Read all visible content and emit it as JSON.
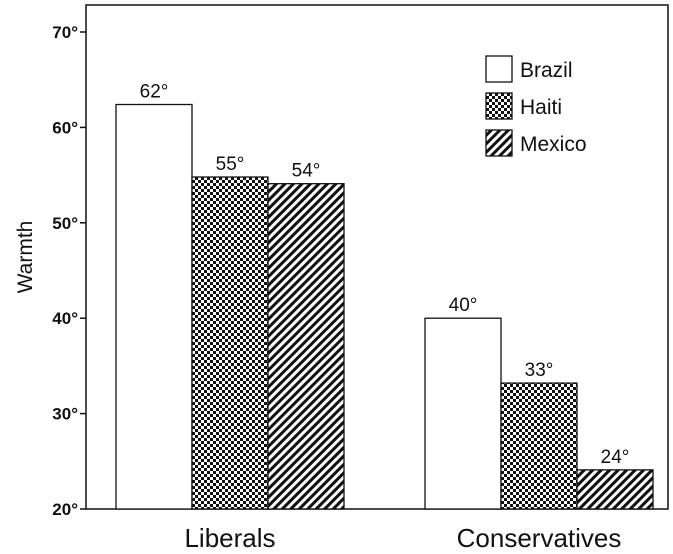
{
  "chart_data": {
    "type": "bar",
    "title": "",
    "ylabel": "Warmth",
    "xlabel": "",
    "categories": [
      "Liberals",
      "Conservatives"
    ],
    "ylim": [
      20,
      70
    ],
    "yticks": [
      "20°",
      "30°",
      "40°",
      "50°",
      "60°",
      "70°"
    ],
    "series": [
      {
        "name": "Brazil",
        "values": [
          62.4,
          40
        ],
        "labels": [
          "62°",
          "40°"
        ],
        "pattern": "white"
      },
      {
        "name": "Haiti",
        "values": [
          54.8,
          33.2
        ],
        "labels": [
          "55°",
          "33°"
        ],
        "pattern": "checker"
      },
      {
        "name": "Mexico",
        "values": [
          54.1,
          24.1
        ],
        "labels": [
          "54°",
          "24°"
        ],
        "pattern": "diagonal"
      }
    ],
    "legend_position": "top-right",
    "grid": false,
    "colors": {
      "ink": "#111111",
      "background": "#ffffff"
    }
  }
}
